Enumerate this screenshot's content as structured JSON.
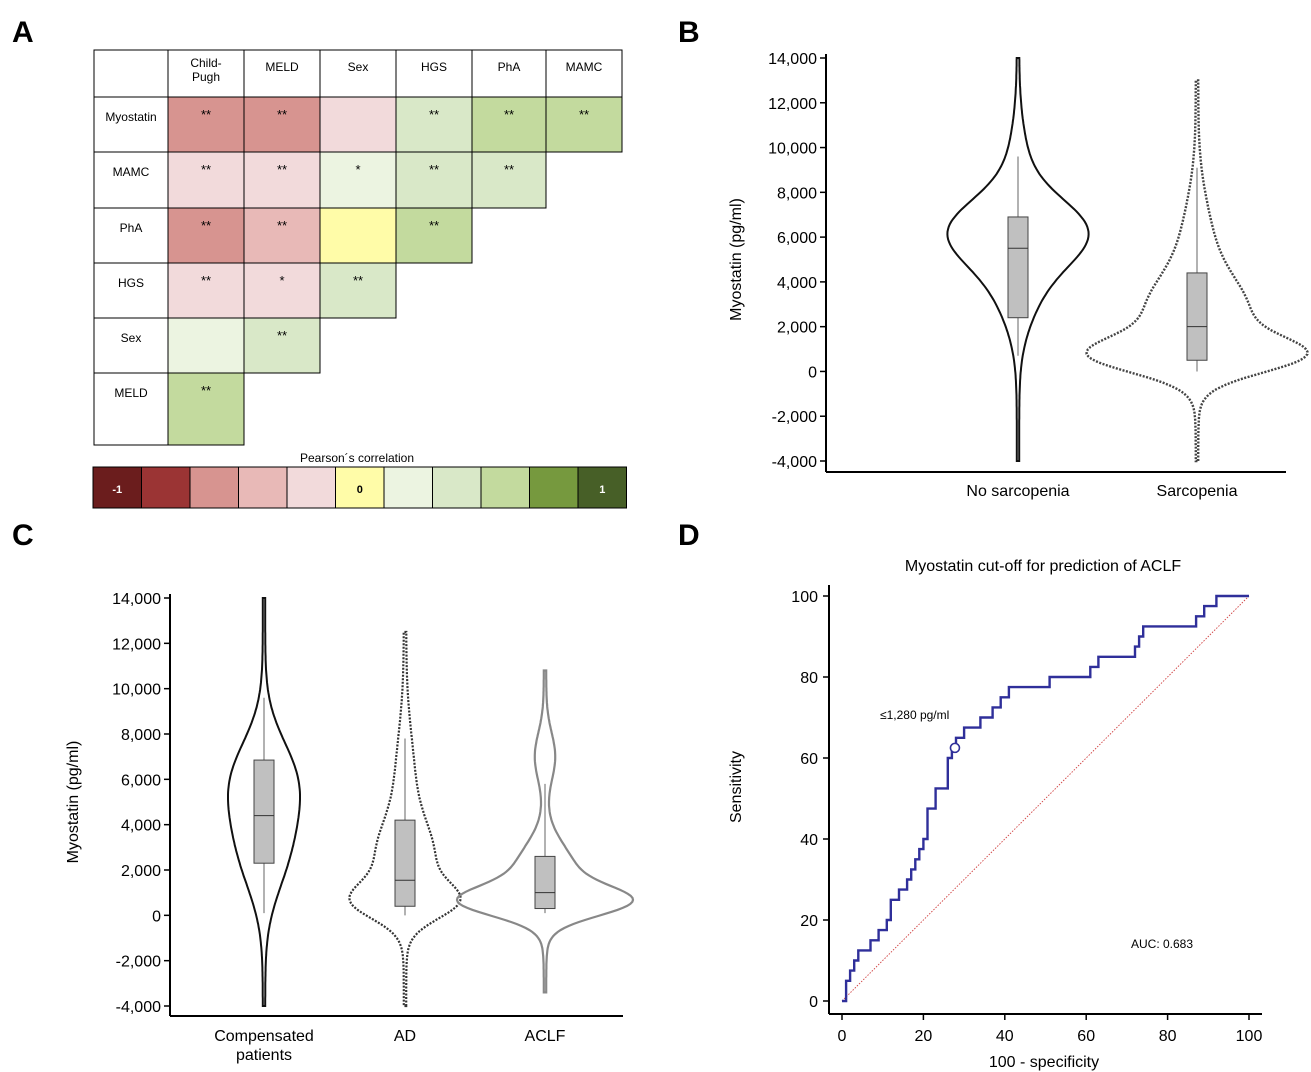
{
  "chart_data": [
    {
      "panel": "A",
      "type": "heatmap",
      "title": "",
      "columns": [
        "Child-Pugh",
        "MELD",
        "Sex",
        "HGS",
        "PhA",
        "MAMC"
      ],
      "rows": [
        "Myostatin",
        "MAMC",
        "PhA",
        "HGS",
        "Sex",
        "MELD"
      ],
      "cells": [
        [
          {
            "level": -0.5,
            "sig": "**"
          },
          {
            "level": -0.5,
            "sig": "**"
          },
          {
            "level": -0.1,
            "sig": ""
          },
          {
            "level": 0.2,
            "sig": "**"
          },
          {
            "level": 0.4,
            "sig": "**"
          },
          {
            "level": 0.4,
            "sig": "**"
          }
        ],
        [
          {
            "level": -0.1,
            "sig": "**"
          },
          {
            "level": -0.1,
            "sig": "**"
          },
          {
            "level": 0.1,
            "sig": "*"
          },
          {
            "level": 0.2,
            "sig": "**"
          },
          {
            "level": 0.2,
            "sig": "**"
          }
        ],
        [
          {
            "level": -0.5,
            "sig": "**"
          },
          {
            "level": -0.3,
            "sig": "**"
          },
          {
            "level": 0.0,
            "sig": ""
          },
          {
            "level": 0.4,
            "sig": "**"
          }
        ],
        [
          {
            "level": -0.1,
            "sig": "**"
          },
          {
            "level": -0.1,
            "sig": "*"
          },
          {
            "level": 0.2,
            "sig": "**"
          }
        ],
        [
          {
            "level": 0.1,
            "sig": ""
          },
          {
            "level": 0.2,
            "sig": "**"
          }
        ],
        [
          {
            "level": 0.4,
            "sig": "**"
          }
        ]
      ],
      "colorbar": {
        "label": "Pearson´s correlation",
        "end_low": "-1",
        "middle": "0",
        "end_high": "1",
        "colors": [
          "#6b1d1d",
          "#9b3434",
          "#d79490",
          "#e8b9b7",
          "#f2dadb",
          "#fffca8",
          "#ecf4e1",
          "#d9e8c8",
          "#c3da9e",
          "#76993e",
          "#475f27"
        ]
      }
    },
    {
      "panel": "B",
      "type": "violin",
      "ylabel": "Myostatin (pg/ml)",
      "ylim": [
        -4000,
        14000
      ],
      "yticks": [
        "14,000",
        "12,000",
        "10,000",
        "8,000",
        "6,000",
        "4,000",
        "2,000",
        "0",
        "-2,000",
        "-4,000"
      ],
      "categories": [
        "No sarcopenia",
        "Sarcopenia"
      ],
      "boxes": [
        {
          "whisker_low": 700,
          "q1": 2400,
          "median": 5500,
          "q3": 6900,
          "whisker_high": 9600
        },
        {
          "whisker_low": 0,
          "q1": 500,
          "median": 2000,
          "q3": 4400,
          "whisker_high": 9100
        }
      ]
    },
    {
      "panel": "C",
      "type": "violin",
      "ylabel": "Myostatin (pg/ml)",
      "ylim": [
        -4000,
        14000
      ],
      "yticks": [
        "14,000",
        "12,000",
        "10,000",
        "8,000",
        "6,000",
        "4,000",
        "2,000",
        "0",
        "-2,000",
        "-4,000"
      ],
      "categories": [
        "Compensated patients",
        "AD",
        "ACLF"
      ],
      "boxes": [
        {
          "whisker_low": 100,
          "q1": 2300,
          "median": 4400,
          "q3": 6850,
          "whisker_high": 9600
        },
        {
          "whisker_low": 0,
          "q1": 400,
          "median": 1550,
          "q3": 4200,
          "whisker_high": 7800
        },
        {
          "whisker_low": 100,
          "q1": 300,
          "median": 1000,
          "q3": 2600,
          "whisker_high": 5800
        }
      ]
    },
    {
      "panel": "D",
      "type": "line",
      "title": "Myostatin cut-off for prediction of ACLF",
      "xlabel": "100 - specificity",
      "ylabel": "Sensitivity",
      "xlim": [
        0,
        100
      ],
      "ylim": [
        0,
        100
      ],
      "xticks": [
        "0",
        "20",
        "40",
        "60",
        "80",
        "100"
      ],
      "yticks": [
        "100",
        "80",
        "60",
        "40",
        "20",
        "0"
      ],
      "roc": [
        [
          0,
          0
        ],
        [
          1,
          0
        ],
        [
          1,
          5
        ],
        [
          2,
          5
        ],
        [
          2,
          7.5
        ],
        [
          3,
          7.5
        ],
        [
          3,
          10
        ],
        [
          4,
          10
        ],
        [
          4,
          12.5
        ],
        [
          7,
          12.5
        ],
        [
          7,
          15
        ],
        [
          9,
          15
        ],
        [
          9,
          17.5
        ],
        [
          11,
          17.5
        ],
        [
          11,
          20
        ],
        [
          12,
          20
        ],
        [
          12,
          25
        ],
        [
          14,
          25
        ],
        [
          14,
          27.5
        ],
        [
          16,
          27.5
        ],
        [
          16,
          30
        ],
        [
          17,
          30
        ],
        [
          17,
          32.5
        ],
        [
          18,
          32.5
        ],
        [
          18,
          35
        ],
        [
          19,
          35
        ],
        [
          19,
          37.5
        ],
        [
          20,
          37.5
        ],
        [
          20,
          40
        ],
        [
          21,
          40
        ],
        [
          21,
          47.5
        ],
        [
          23,
          47.5
        ],
        [
          23,
          52.5
        ],
        [
          26,
          52.5
        ],
        [
          26,
          60
        ],
        [
          27,
          60
        ],
        [
          27,
          62.5
        ],
        [
          28,
          62.5
        ],
        [
          28,
          65
        ],
        [
          30,
          65
        ],
        [
          30,
          67.5
        ],
        [
          34,
          67.5
        ],
        [
          34,
          70
        ],
        [
          37,
          70
        ],
        [
          37,
          72.5
        ],
        [
          39,
          72.5
        ],
        [
          39,
          75
        ],
        [
          41,
          75
        ],
        [
          41,
          77.5
        ],
        [
          51,
          77.5
        ],
        [
          51,
          80
        ],
        [
          61,
          80
        ],
        [
          61,
          82.5
        ],
        [
          63,
          82.5
        ],
        [
          63,
          85
        ],
        [
          72,
          85
        ],
        [
          72,
          87.5
        ],
        [
          73,
          87.5
        ],
        [
          73,
          90
        ],
        [
          74,
          90
        ],
        [
          74,
          92.5
        ],
        [
          87,
          92.5
        ],
        [
          87,
          95
        ],
        [
          89,
          95
        ],
        [
          89,
          97.5
        ],
        [
          92,
          97.5
        ],
        [
          92,
          100
        ],
        [
          100,
          100
        ]
      ],
      "cutoff": {
        "x": 28,
        "y": 62.5,
        "label": "≤1,280 pg/ml"
      },
      "auc_label": "AUC: 0.683"
    }
  ],
  "panel_labels": {
    "a": "A",
    "b": "B",
    "c": "C",
    "d": "D"
  }
}
